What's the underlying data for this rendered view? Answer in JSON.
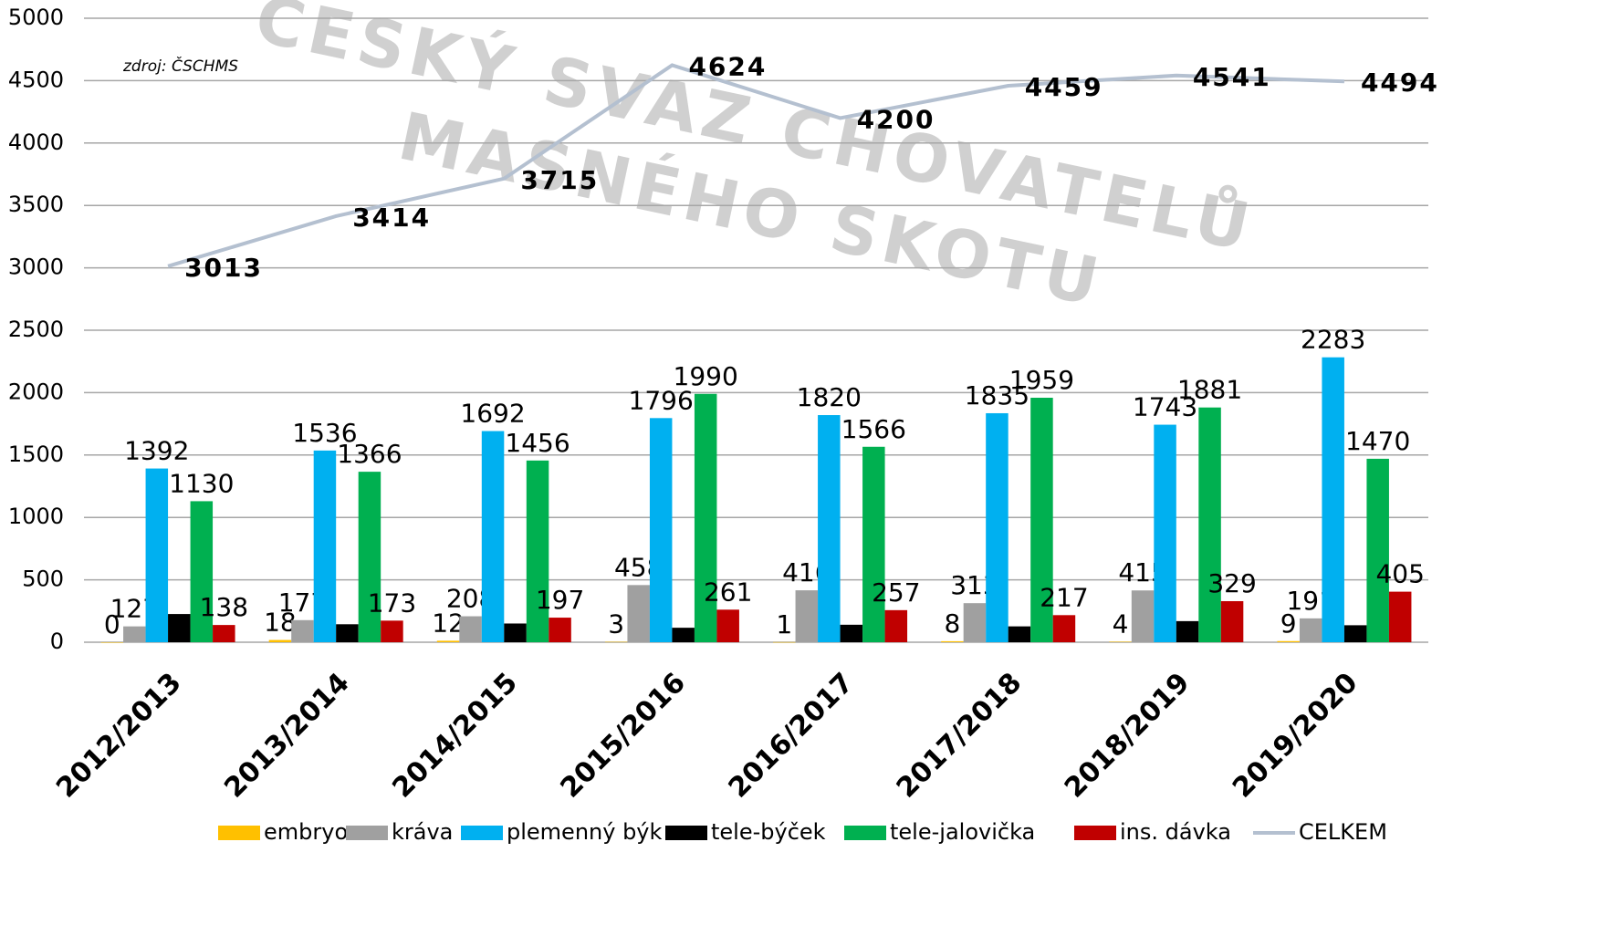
{
  "chart_data": {
    "type": "bar",
    "annotation": "zdroj: ČSCHMS",
    "watermark": [
      "ČESKÝ SVAZ CHOVATELŮ",
      "MASNÉHO SKOTU"
    ],
    "categories": [
      "2012/2013",
      "2013/2014",
      "2014/2015",
      "2015/2016",
      "2016/2017",
      "2017/2018",
      "2018/2019",
      "2019/2020"
    ],
    "series": [
      {
        "name": "embryo",
        "color": "#ffc000",
        "kind": "bar",
        "data_labels": true,
        "values": [
          0,
          18,
          12,
          3,
          1,
          8,
          4,
          9
        ]
      },
      {
        "name": "kráva",
        "color": "#a0a0a0",
        "kind": "bar",
        "data_labels": true,
        "values": [
          127,
          177,
          208,
          458,
          416,
          313,
          415,
          191
        ]
      },
      {
        "name": "plemenný býk",
        "color": "#00b0f0",
        "kind": "bar",
        "data_labels": true,
        "values": [
          1392,
          1536,
          1692,
          1796,
          1820,
          1835,
          1743,
          2283
        ]
      },
      {
        "name": "tele-býček",
        "color": "#000000",
        "kind": "bar",
        "data_labels": false,
        "values": [
          226,
          144,
          150,
          116,
          140,
          127,
          169,
          136
        ]
      },
      {
        "name": "tele-jalovička",
        "color": "#00b050",
        "kind": "bar",
        "data_labels": true,
        "values": [
          1130,
          1366,
          1456,
          1990,
          1566,
          1959,
          1881,
          1470
        ]
      },
      {
        "name": "ins. dávka",
        "color": "#c00000",
        "kind": "bar",
        "data_labels": true,
        "values": [
          138,
          173,
          197,
          261,
          257,
          217,
          329,
          405
        ]
      },
      {
        "name": "CELKEM",
        "color": "#b4c0d0",
        "kind": "line",
        "data_labels": true,
        "values": [
          3013,
          3414,
          3715,
          4624,
          4200,
          4459,
          4541,
          4494
        ]
      }
    ],
    "ylim": [
      0,
      5000
    ],
    "yticks": [
      0,
      500,
      1000,
      1500,
      2000,
      2500,
      3000,
      3500,
      4000,
      4500,
      5000
    ],
    "grid": true,
    "legend": "bottom"
  }
}
